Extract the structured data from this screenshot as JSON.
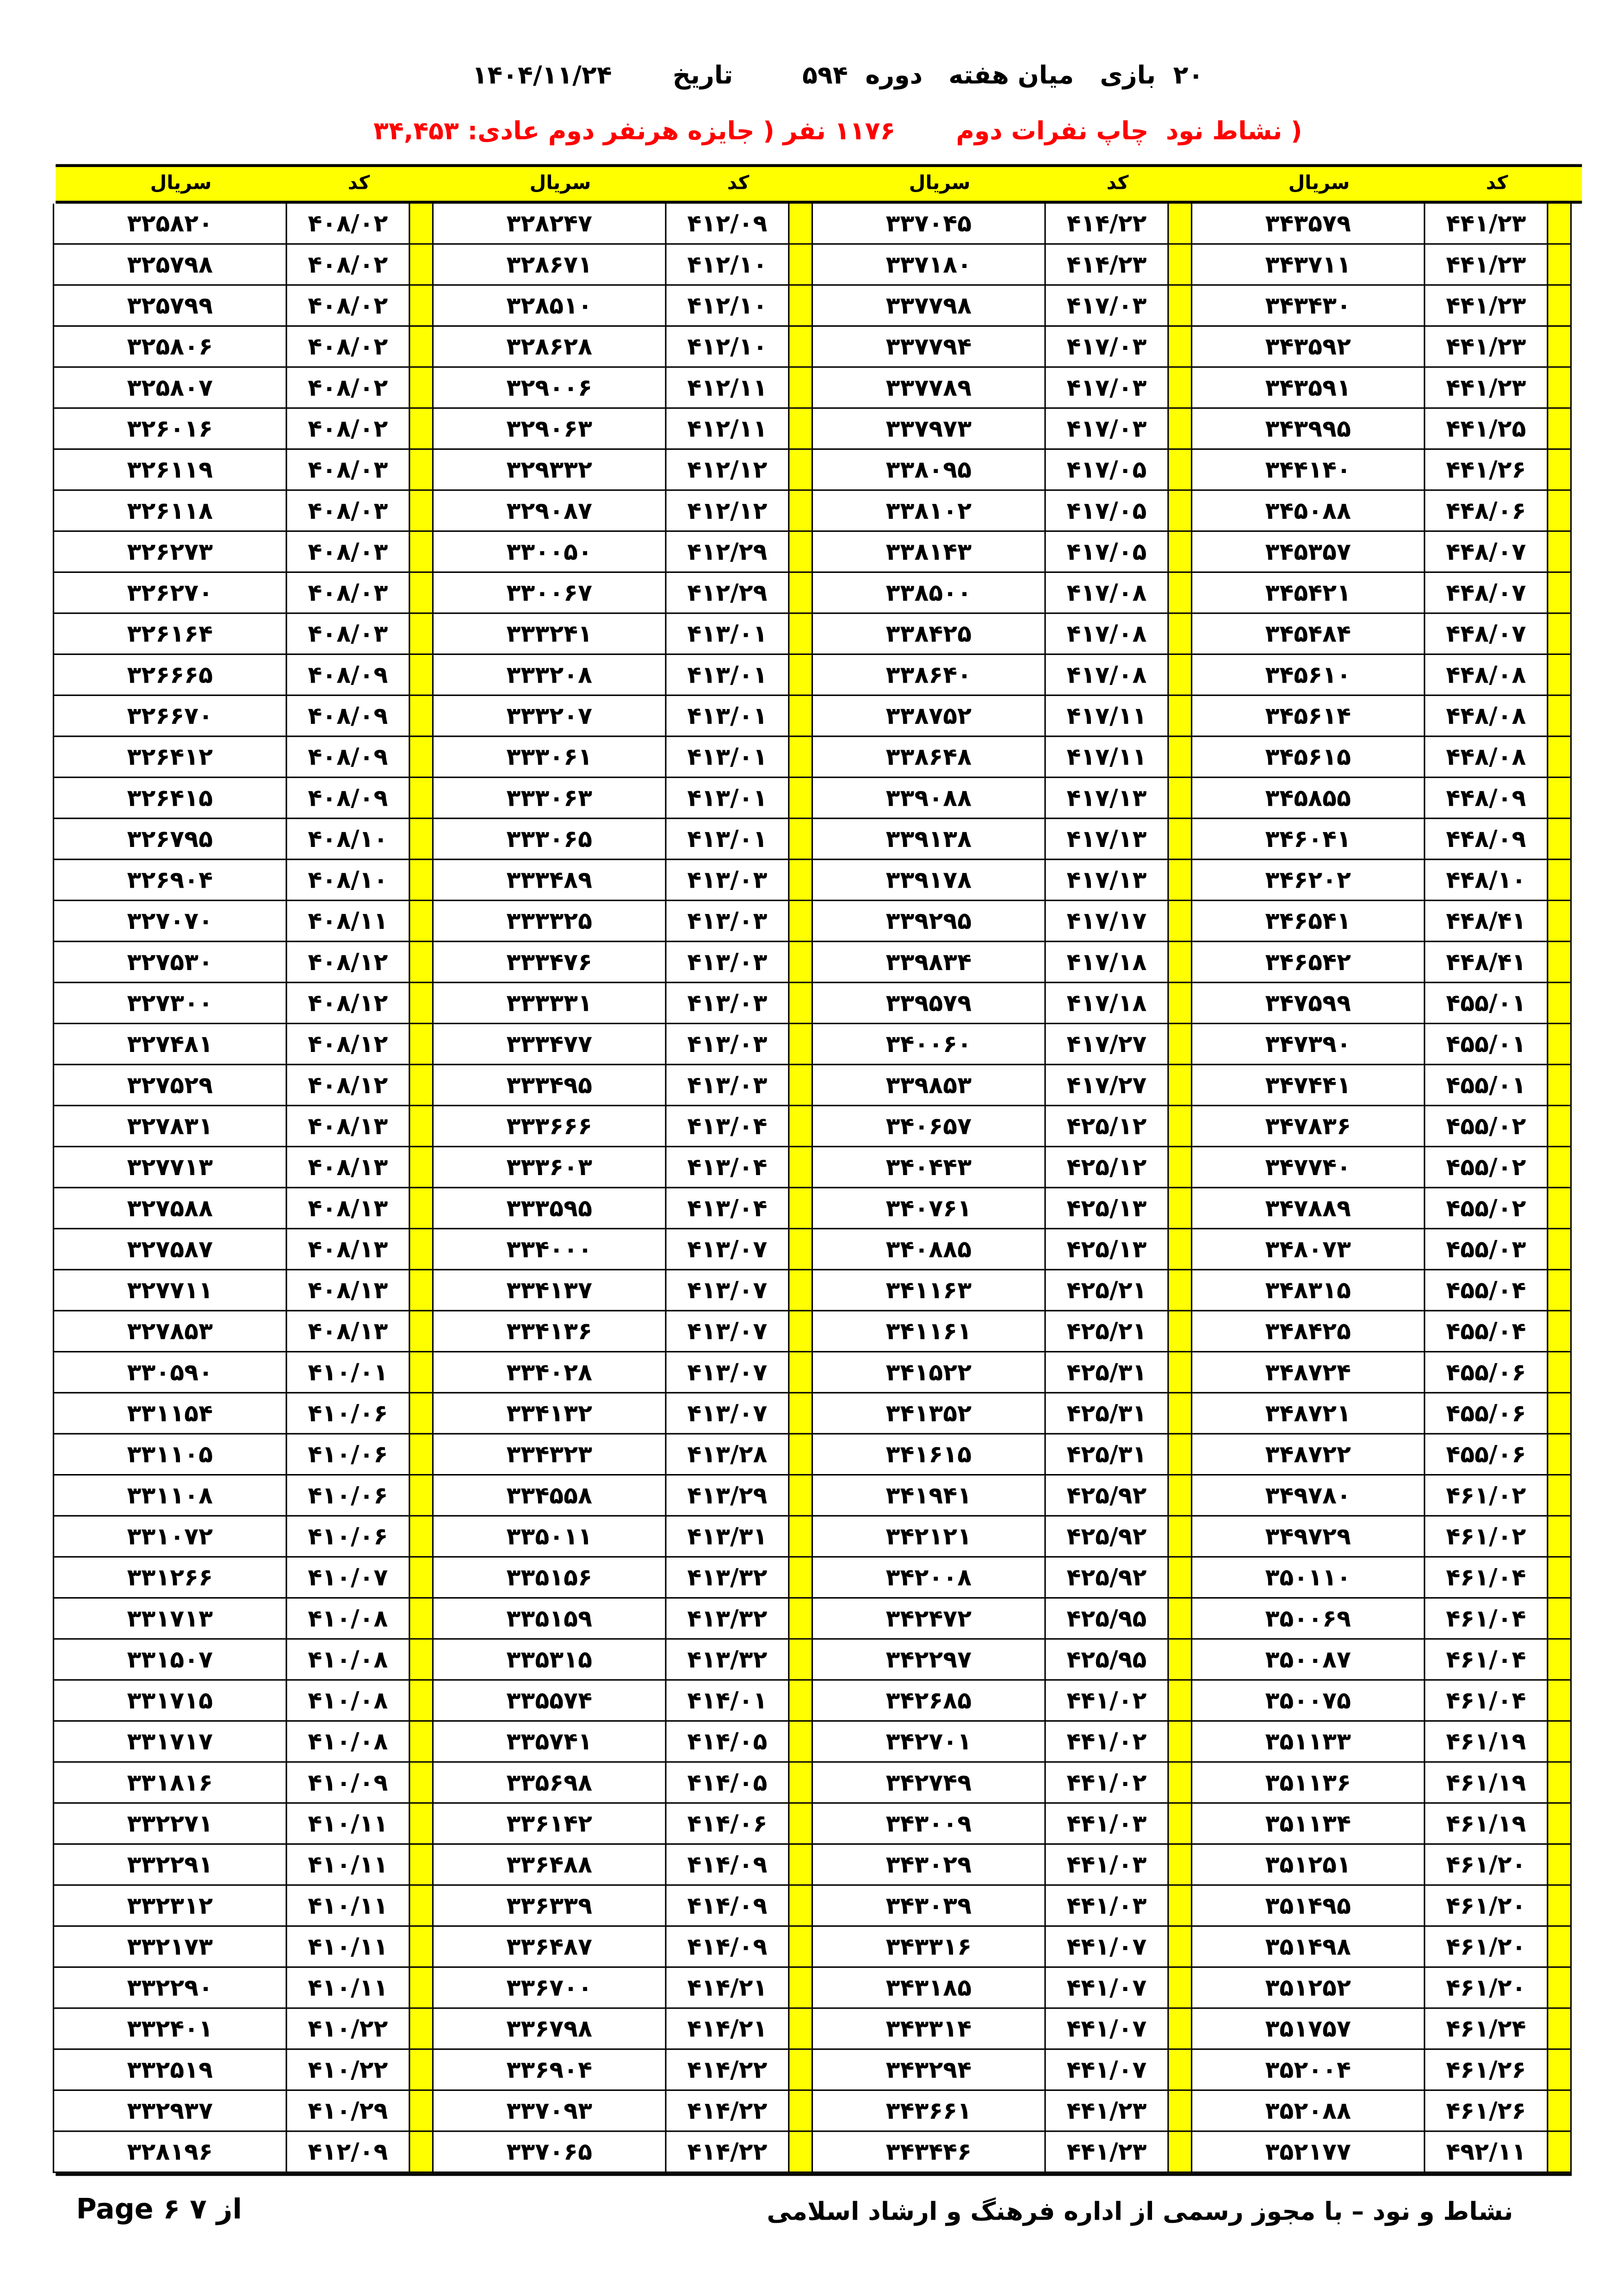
{
  "header": {
    "title": "۲۰  بازی   میان هفته   دوره  ۵۹۴        تاریخ       ۱۴۰۴/۱۱/۲۴",
    "subtitle": "( نشاط نود  چاپ نفرات دوم       ۱۱۷۶ نفر ( جایزه هرنفر دوم عادی: ۳۴,۴۵۳"
  },
  "table": {
    "code_label": "کد",
    "serial_label": "سریال",
    "rows": [
      [
        "۴۴۱/۲۳",
        "۳۴۳۵۷۹",
        "۴۱۴/۲۲",
        "۳۳۷۰۴۵",
        "۴۱۲/۰۹",
        "۳۲۸۲۴۷",
        "۴۰۸/۰۲",
        "۳۲۵۸۲۰"
      ],
      [
        "۴۴۱/۲۳",
        "۳۴۳۷۱۱",
        "۴۱۴/۲۳",
        "۳۳۷۱۸۰",
        "۴۱۲/۱۰",
        "۳۲۸۶۷۱",
        "۴۰۸/۰۲",
        "۳۲۵۷۹۸"
      ],
      [
        "۴۴۱/۲۳",
        "۳۴۳۴۳۰",
        "۴۱۷/۰۳",
        "۳۳۷۷۹۸",
        "۴۱۲/۱۰",
        "۳۲۸۵۱۰",
        "۴۰۸/۰۲",
        "۳۲۵۷۹۹"
      ],
      [
        "۴۴۱/۲۳",
        "۳۴۳۵۹۲",
        "۴۱۷/۰۳",
        "۳۳۷۷۹۴",
        "۴۱۲/۱۰",
        "۳۲۸۶۲۸",
        "۴۰۸/۰۲",
        "۳۲۵۸۰۶"
      ],
      [
        "۴۴۱/۲۳",
        "۳۴۳۵۹۱",
        "۴۱۷/۰۳",
        "۳۳۷۷۸۹",
        "۴۱۲/۱۱",
        "۳۲۹۰۰۶",
        "۴۰۸/۰۲",
        "۳۲۵۸۰۷"
      ],
      [
        "۴۴۱/۲۵",
        "۳۴۳۹۹۵",
        "۴۱۷/۰۳",
        "۳۳۷۹۷۳",
        "۴۱۲/۱۱",
        "۳۲۹۰۶۳",
        "۴۰۸/۰۲",
        "۳۲۶۰۱۶"
      ],
      [
        "۴۴۱/۲۶",
        "۳۴۴۱۴۰",
        "۴۱۷/۰۵",
        "۳۳۸۰۹۵",
        "۴۱۲/۱۲",
        "۳۲۹۳۳۲",
        "۴۰۸/۰۳",
        "۳۲۶۱۱۹"
      ],
      [
        "۴۴۸/۰۶",
        "۳۴۵۰۸۸",
        "۴۱۷/۰۵",
        "۳۳۸۱۰۲",
        "۴۱۲/۱۲",
        "۳۲۹۰۸۷",
        "۴۰۸/۰۳",
        "۳۲۶۱۱۸"
      ],
      [
        "۴۴۸/۰۷",
        "۳۴۵۳۵۷",
        "۴۱۷/۰۵",
        "۳۳۸۱۴۳",
        "۴۱۲/۲۹",
        "۳۳۰۰۵۰",
        "۴۰۸/۰۳",
        "۳۲۶۲۷۳"
      ],
      [
        "۴۴۸/۰۷",
        "۳۴۵۴۲۱",
        "۴۱۷/۰۸",
        "۳۳۸۵۰۰",
        "۴۱۲/۲۹",
        "۳۳۰۰۶۷",
        "۴۰۸/۰۳",
        "۳۲۶۲۷۰"
      ],
      [
        "۴۴۸/۰۷",
        "۳۴۵۴۸۴",
        "۴۱۷/۰۸",
        "۳۳۸۴۲۵",
        "۴۱۳/۰۱",
        "۳۳۳۲۴۱",
        "۴۰۸/۰۳",
        "۳۲۶۱۶۴"
      ],
      [
        "۴۴۸/۰۸",
        "۳۴۵۶۱۰",
        "۴۱۷/۰۸",
        "۳۳۸۶۴۰",
        "۴۱۳/۰۱",
        "۳۳۳۲۰۸",
        "۴۰۸/۰۹",
        "۳۲۶۶۶۵"
      ],
      [
        "۴۴۸/۰۸",
        "۳۴۵۶۱۴",
        "۴۱۷/۱۱",
        "۳۳۸۷۵۲",
        "۴۱۳/۰۱",
        "۳۳۳۲۰۷",
        "۴۰۸/۰۹",
        "۳۲۶۶۷۰"
      ],
      [
        "۴۴۸/۰۸",
        "۳۴۵۶۱۵",
        "۴۱۷/۱۱",
        "۳۳۸۶۴۸",
        "۴۱۳/۰۱",
        "۳۳۳۰۶۱",
        "۴۰۸/۰۹",
        "۳۲۶۴۱۲"
      ],
      [
        "۴۴۸/۰۹",
        "۳۴۵۸۵۵",
        "۴۱۷/۱۳",
        "۳۳۹۰۸۸",
        "۴۱۳/۰۱",
        "۳۳۳۰۶۳",
        "۴۰۸/۰۹",
        "۳۲۶۴۱۵"
      ],
      [
        "۴۴۸/۰۹",
        "۳۴۶۰۴۱",
        "۴۱۷/۱۳",
        "۳۳۹۱۳۸",
        "۴۱۳/۰۱",
        "۳۳۳۰۶۵",
        "۴۰۸/۱۰",
        "۳۲۶۷۹۵"
      ],
      [
        "۴۴۸/۱۰",
        "۳۴۶۲۰۲",
        "۴۱۷/۱۳",
        "۳۳۹۱۷۸",
        "۴۱۳/۰۳",
        "۳۳۳۴۸۹",
        "۴۰۸/۱۰",
        "۳۲۶۹۰۴"
      ],
      [
        "۴۴۸/۴۱",
        "۳۴۶۵۴۱",
        "۴۱۷/۱۷",
        "۳۳۹۲۹۵",
        "۴۱۳/۰۳",
        "۳۳۳۳۲۵",
        "۴۰۸/۱۱",
        "۳۲۷۰۷۰"
      ],
      [
        "۴۴۸/۴۱",
        "۳۴۶۵۴۲",
        "۴۱۷/۱۸",
        "۳۳۹۸۳۴",
        "۴۱۳/۰۳",
        "۳۳۳۴۷۶",
        "۴۰۸/۱۲",
        "۳۲۷۵۳۰"
      ],
      [
        "۴۵۵/۰۱",
        "۳۴۷۵۹۹",
        "۴۱۷/۱۸",
        "۳۳۹۵۷۹",
        "۴۱۳/۰۳",
        "۳۳۳۳۳۱",
        "۴۰۸/۱۲",
        "۳۲۷۳۰۰"
      ],
      [
        "۴۵۵/۰۱",
        "۳۴۷۳۹۰",
        "۴۱۷/۲۷",
        "۳۴۰۰۶۰",
        "۴۱۳/۰۳",
        "۳۳۳۴۷۷",
        "۴۰۸/۱۲",
        "۳۲۷۴۸۱"
      ],
      [
        "۴۵۵/۰۱",
        "۳۴۷۴۴۱",
        "۴۱۷/۲۷",
        "۳۳۹۸۵۳",
        "۴۱۳/۰۳",
        "۳۳۳۴۹۵",
        "۴۰۸/۱۲",
        "۳۲۷۵۲۹"
      ],
      [
        "۴۵۵/۰۲",
        "۳۴۷۸۳۶",
        "۴۲۵/۱۲",
        "۳۴۰۶۵۷",
        "۴۱۳/۰۴",
        "۳۳۳۶۶۶",
        "۴۰۸/۱۳",
        "۳۲۷۸۳۱"
      ],
      [
        "۴۵۵/۰۲",
        "۳۴۷۷۴۰",
        "۴۲۵/۱۲",
        "۳۴۰۴۴۳",
        "۴۱۳/۰۴",
        "۳۳۳۶۰۳",
        "۴۰۸/۱۳",
        "۳۲۷۷۱۳"
      ],
      [
        "۴۵۵/۰۲",
        "۳۴۷۸۸۹",
        "۴۲۵/۱۳",
        "۳۴۰۷۶۱",
        "۴۱۳/۰۴",
        "۳۳۳۵۹۵",
        "۴۰۸/۱۳",
        "۳۲۷۵۸۸"
      ],
      [
        "۴۵۵/۰۳",
        "۳۴۸۰۷۳",
        "۴۲۵/۱۳",
        "۳۴۰۸۸۵",
        "۴۱۳/۰۷",
        "۳۳۴۰۰۰",
        "۴۰۸/۱۳",
        "۳۲۷۵۸۷"
      ],
      [
        "۴۵۵/۰۴",
        "۳۴۸۳۱۵",
        "۴۲۵/۲۱",
        "۳۴۱۱۶۳",
        "۴۱۳/۰۷",
        "۳۳۴۱۳۷",
        "۴۰۸/۱۳",
        "۳۲۷۷۱۱"
      ],
      [
        "۴۵۵/۰۴",
        "۳۴۸۴۲۵",
        "۴۲۵/۲۱",
        "۳۴۱۱۶۱",
        "۴۱۳/۰۷",
        "۳۳۴۱۳۶",
        "۴۰۸/۱۳",
        "۳۲۷۸۵۳"
      ],
      [
        "۴۵۵/۰۶",
        "۳۴۸۷۲۴",
        "۴۲۵/۳۱",
        "۳۴۱۵۲۲",
        "۴۱۳/۰۷",
        "۳۳۴۰۲۸",
        "۴۱۰/۰۱",
        "۳۳۰۵۹۰"
      ],
      [
        "۴۵۵/۰۶",
        "۳۴۸۷۲۱",
        "۴۲۵/۳۱",
        "۳۴۱۳۵۲",
        "۴۱۳/۰۷",
        "۳۳۴۱۳۲",
        "۴۱۰/۰۶",
        "۳۳۱۱۵۴"
      ],
      [
        "۴۵۵/۰۶",
        "۳۴۸۷۲۲",
        "۴۲۵/۳۱",
        "۳۴۱۶۱۵",
        "۴۱۳/۲۸",
        "۳۳۴۳۲۳",
        "۴۱۰/۰۶",
        "۳۳۱۱۰۵"
      ],
      [
        "۴۶۱/۰۲",
        "۳۴۹۷۸۰",
        "۴۲۵/۹۲",
        "۳۴۱۹۴۱",
        "۴۱۳/۲۹",
        "۳۳۴۵۵۸",
        "۴۱۰/۰۶",
        "۳۳۱۱۰۸"
      ],
      [
        "۴۶۱/۰۲",
        "۳۴۹۷۲۹",
        "۴۲۵/۹۲",
        "۳۴۲۱۲۱",
        "۴۱۳/۳۱",
        "۳۳۵۰۱۱",
        "۴۱۰/۰۶",
        "۳۳۱۰۷۲"
      ],
      [
        "۴۶۱/۰۴",
        "۳۵۰۱۱۰",
        "۴۲۵/۹۲",
        "۳۴۲۰۰۸",
        "۴۱۳/۳۲",
        "۳۳۵۱۵۶",
        "۴۱۰/۰۷",
        "۳۳۱۲۶۶"
      ],
      [
        "۴۶۱/۰۴",
        "۳۵۰۰۶۹",
        "۴۲۵/۹۵",
        "۳۴۲۴۷۲",
        "۴۱۳/۳۲",
        "۳۳۵۱۵۹",
        "۴۱۰/۰۸",
        "۳۳۱۷۱۳"
      ],
      [
        "۴۶۱/۰۴",
        "۳۵۰۰۸۷",
        "۴۲۵/۹۵",
        "۳۴۲۲۹۷",
        "۴۱۳/۳۲",
        "۳۳۵۳۱۵",
        "۴۱۰/۰۸",
        "۳۳۱۵۰۷"
      ],
      [
        "۴۶۱/۰۴",
        "۳۵۰۰۷۵",
        "۴۴۱/۰۲",
        "۳۴۲۶۸۵",
        "۴۱۴/۰۱",
        "۳۳۵۵۷۴",
        "۴۱۰/۰۸",
        "۳۳۱۷۱۵"
      ],
      [
        "۴۶۱/۱۹",
        "۳۵۱۱۳۳",
        "۴۴۱/۰۲",
        "۳۴۲۷۰۱",
        "۴۱۴/۰۵",
        "۳۳۵۷۴۱",
        "۴۱۰/۰۸",
        "۳۳۱۷۱۷"
      ],
      [
        "۴۶۱/۱۹",
        "۳۵۱۱۳۶",
        "۴۴۱/۰۲",
        "۳۴۲۷۴۹",
        "۴۱۴/۰۵",
        "۳۳۵۶۹۸",
        "۴۱۰/۰۹",
        "۳۳۱۸۱۶"
      ],
      [
        "۴۶۱/۱۹",
        "۳۵۱۱۳۴",
        "۴۴۱/۰۳",
        "۳۴۳۰۰۹",
        "۴۱۴/۰۶",
        "۳۳۶۱۴۲",
        "۴۱۰/۱۱",
        "۳۳۲۲۷۱"
      ],
      [
        "۴۶۱/۲۰",
        "۳۵۱۲۵۱",
        "۴۴۱/۰۳",
        "۳۴۳۰۲۹",
        "۴۱۴/۰۹",
        "۳۳۶۴۸۸",
        "۴۱۰/۱۱",
        "۳۳۲۲۹۱"
      ],
      [
        "۴۶۱/۲۰",
        "۳۵۱۴۹۵",
        "۴۴۱/۰۳",
        "۳۴۳۰۳۹",
        "۴۱۴/۰۹",
        "۳۳۶۳۳۹",
        "۴۱۰/۱۱",
        "۳۳۲۳۱۲"
      ],
      [
        "۴۶۱/۲۰",
        "۳۵۱۴۹۸",
        "۴۴۱/۰۷",
        "۳۴۳۳۱۶",
        "۴۱۴/۰۹",
        "۳۳۶۴۸۷",
        "۴۱۰/۱۱",
        "۳۳۲۱۷۳"
      ],
      [
        "۴۶۱/۲۰",
        "۳۵۱۲۵۲",
        "۴۴۱/۰۷",
        "۳۴۳۱۸۵",
        "۴۱۴/۲۱",
        "۳۳۶۷۰۰",
        "۴۱۰/۱۱",
        "۳۳۲۲۹۰"
      ],
      [
        "۴۶۱/۲۴",
        "۳۵۱۷۵۷",
        "۴۴۱/۰۷",
        "۳۴۳۳۱۴",
        "۴۱۴/۲۱",
        "۳۳۶۷۹۸",
        "۴۱۰/۲۲",
        "۳۳۲۴۰۱"
      ],
      [
        "۴۶۱/۲۶",
        "۳۵۲۰۰۴",
        "۴۴۱/۰۷",
        "۳۴۳۲۹۴",
        "۴۱۴/۲۲",
        "۳۳۶۹۰۴",
        "۴۱۰/۲۲",
        "۳۳۲۵۱۹"
      ],
      [
        "۴۶۱/۲۶",
        "۳۵۲۰۸۸",
        "۴۴۱/۲۳",
        "۳۴۳۶۶۱",
        "۴۱۴/۲۲",
        "۳۳۷۰۹۳",
        "۴۱۰/۲۹",
        "۳۳۲۹۳۷"
      ],
      [
        "۴۹۲/۱۱",
        "۳۵۲۱۷۷",
        "۴۴۱/۲۳",
        "۳۴۳۴۴۶",
        "۴۱۴/۲۲",
        "۳۳۷۰۶۵",
        "۴۱۲/۰۹",
        "۳۲۸۱۹۶"
      ]
    ]
  },
  "footer": {
    "license": "نشاط و نود – با مجوز رسمی از اداره فرهنگ و ارشاد اسلامی",
    "page": "Page ۶ ۷ از"
  },
  "colors": {
    "highlight": "#ffff00",
    "subtitle": "#ff0000"
  }
}
